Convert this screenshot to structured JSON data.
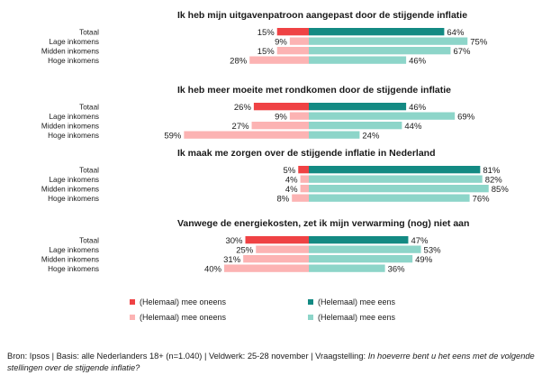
{
  "colors": {
    "neg_total": "#ef4244",
    "neg_group": "#fcb3b3",
    "pos_total": "#138a83",
    "pos_group": "#8dd5c9"
  },
  "chart_data": {
    "type": "bar",
    "orientation": "horizontal-diverging",
    "categories": [
      "Totaal",
      "Lage inkomens",
      "Midden inkomens",
      "Hoge inkomens"
    ],
    "xlim": [
      -60,
      90
    ],
    "grid": false,
    "panels": [
      {
        "title": "Ik heb mijn uitgavenpatroon aangepast door de stijgende inflatie",
        "disagree": [
          15,
          9,
          15,
          28
        ],
        "agree": [
          64,
          75,
          67,
          46
        ],
        "disagree_labels": [
          "15%",
          "9%",
          "15%",
          "28%"
        ],
        "agree_labels": [
          "64%",
          "75%",
          "67%",
          "46%"
        ]
      },
      {
        "title": "Ik heb meer moeite met rondkomen door de stijgende inflatie",
        "disagree": [
          26,
          9,
          27,
          59
        ],
        "agree": [
          46,
          69,
          44,
          24
        ],
        "disagree_labels": [
          "26%",
          "9%",
          "27%",
          "59%"
        ],
        "agree_labels": [
          "46%",
          "69%",
          "44%",
          "24%"
        ]
      },
      {
        "title": "Ik maak me zorgen over de stijgende inflatie in Nederland",
        "disagree": [
          5,
          4,
          4,
          8
        ],
        "agree": [
          81,
          82,
          85,
          76
        ],
        "disagree_labels": [
          "5%",
          "4%",
          "4%",
          "8%"
        ],
        "agree_labels": [
          "81%",
          "82%",
          "85%",
          "76%"
        ]
      },
      {
        "title": "Vanwege de energiekosten, zet ik mijn verwarming (nog) niet aan",
        "disagree": [
          30,
          25,
          31,
          40
        ],
        "agree": [
          47,
          53,
          49,
          36
        ],
        "disagree_labels": [
          "30%",
          "25%",
          "31%",
          "40%"
        ],
        "agree_labels": [
          "47%",
          "53%",
          "49%",
          "36%"
        ]
      }
    ],
    "legend": {
      "placement": "bottom",
      "items": [
        {
          "label": "(Helemaal) mee oneens",
          "color": "#ef4244"
        },
        {
          "label": "(Helemaal) mee eens",
          "color": "#138a83"
        },
        {
          "label": "(Helemaal) mee oneens",
          "color": "#fcb3b3"
        },
        {
          "label": "(Helemaal) mee eens",
          "color": "#8dd5c9"
        }
      ]
    }
  },
  "source": {
    "text": "Bron: Ipsos | Basis: alle Nederlanders 18+ (n=1.040) | Veldwerk: 25-28 november | Vraagstelling: ",
    "question": "In hoeverre bent u het eens met de volgende stellingen over de stijgende inflatie?"
  }
}
